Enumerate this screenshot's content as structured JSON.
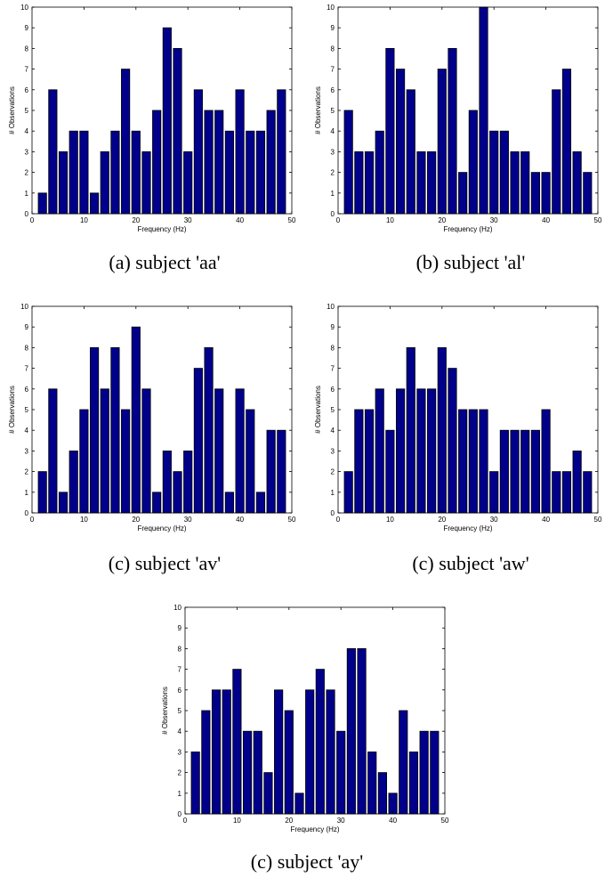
{
  "chart_data": [
    {
      "type": "bar",
      "caption": "(a) subject 'aa'",
      "xlabel": "Frequency (Hz)",
      "ylabel": "# Observations",
      "xlim": [
        0,
        50
      ],
      "ylim": [
        0,
        10
      ],
      "xticks": [
        0,
        10,
        20,
        30,
        40,
        50
      ],
      "yticks": [
        0,
        1,
        2,
        3,
        4,
        5,
        6,
        7,
        8,
        9,
        10
      ],
      "x": [
        2,
        4,
        6,
        8,
        10,
        12,
        14,
        16,
        18,
        20,
        22,
        24,
        26,
        28,
        30,
        32,
        34,
        36,
        38,
        40,
        42,
        44,
        46,
        48
      ],
      "values": [
        1,
        6,
        3,
        4,
        4,
        1,
        3,
        4,
        7,
        4,
        3,
        5,
        9,
        8,
        3,
        6,
        5,
        5,
        4,
        6,
        4,
        4,
        5,
        6
      ],
      "bar_color": "#00008b"
    },
    {
      "type": "bar",
      "caption": "(b) subject 'al'",
      "xlabel": "Frequency (Hz)",
      "ylabel": "# Observations",
      "xlim": [
        0,
        50
      ],
      "ylim": [
        0,
        10
      ],
      "xticks": [
        0,
        10,
        20,
        30,
        40,
        50
      ],
      "yticks": [
        0,
        1,
        2,
        3,
        4,
        5,
        6,
        7,
        8,
        9,
        10
      ],
      "x": [
        2,
        4,
        6,
        8,
        10,
        12,
        14,
        16,
        18,
        20,
        22,
        24,
        26,
        28,
        30,
        32,
        34,
        36,
        38,
        40,
        42,
        44,
        46,
        48
      ],
      "values": [
        5,
        3,
        3,
        4,
        8,
        7,
        6,
        3,
        3,
        7,
        8,
        2,
        5,
        10,
        4,
        4,
        3,
        3,
        2,
        2,
        6,
        7,
        3,
        2
      ],
      "bar_color": "#00008b"
    },
    {
      "type": "bar",
      "caption": "(c) subject 'av'",
      "xlabel": "Frequency (Hz)",
      "ylabel": "# Observations",
      "xlim": [
        0,
        50
      ],
      "ylim": [
        0,
        10
      ],
      "xticks": [
        0,
        10,
        20,
        30,
        40,
        50
      ],
      "yticks": [
        0,
        1,
        2,
        3,
        4,
        5,
        6,
        7,
        8,
        9,
        10
      ],
      "x": [
        2,
        4,
        6,
        8,
        10,
        12,
        14,
        16,
        18,
        20,
        22,
        24,
        26,
        28,
        30,
        32,
        34,
        36,
        38,
        40,
        42,
        44,
        46,
        48
      ],
      "values": [
        2,
        6,
        1,
        3,
        5,
        8,
        6,
        8,
        5,
        9,
        6,
        1,
        3,
        2,
        3,
        7,
        8,
        6,
        1,
        6,
        5,
        1,
        4,
        4
      ],
      "bar_color": "#00008b"
    },
    {
      "type": "bar",
      "caption": "(c) subject 'aw'",
      "xlabel": "Frequency (Hz)",
      "ylabel": "# Observations",
      "xlim": [
        0,
        50
      ],
      "ylim": [
        0,
        10
      ],
      "xticks": [
        0,
        10,
        20,
        30,
        40,
        50
      ],
      "yticks": [
        0,
        1,
        2,
        3,
        4,
        5,
        6,
        7,
        8,
        9,
        10
      ],
      "x": [
        2,
        4,
        6,
        8,
        10,
        12,
        14,
        16,
        18,
        20,
        22,
        24,
        26,
        28,
        30,
        32,
        34,
        36,
        38,
        40,
        42,
        44,
        46,
        48
      ],
      "values": [
        2,
        5,
        5,
        6,
        4,
        6,
        8,
        6,
        6,
        8,
        7,
        5,
        5,
        5,
        2,
        4,
        4,
        4,
        4,
        5,
        2,
        2,
        3,
        2
      ],
      "bar_color": "#00008b"
    },
    {
      "type": "bar",
      "caption": "(c) subject 'ay'",
      "xlabel": "Frequency (Hz)",
      "ylabel": "# Observations",
      "xlim": [
        0,
        50
      ],
      "ylim": [
        0,
        10
      ],
      "xticks": [
        0,
        10,
        20,
        30,
        40,
        50
      ],
      "yticks": [
        0,
        1,
        2,
        3,
        4,
        5,
        6,
        7,
        8,
        9,
        10
      ],
      "x": [
        2,
        4,
        6,
        8,
        10,
        12,
        14,
        16,
        18,
        20,
        22,
        24,
        26,
        28,
        30,
        32,
        34,
        36,
        38,
        40,
        42,
        44,
        46,
        48
      ],
      "values": [
        3,
        5,
        6,
        6,
        7,
        4,
        4,
        2,
        6,
        5,
        1,
        6,
        7,
        6,
        4,
        8,
        8,
        3,
        2,
        1,
        5,
        3,
        4,
        4
      ],
      "bar_color": "#00008b"
    }
  ]
}
